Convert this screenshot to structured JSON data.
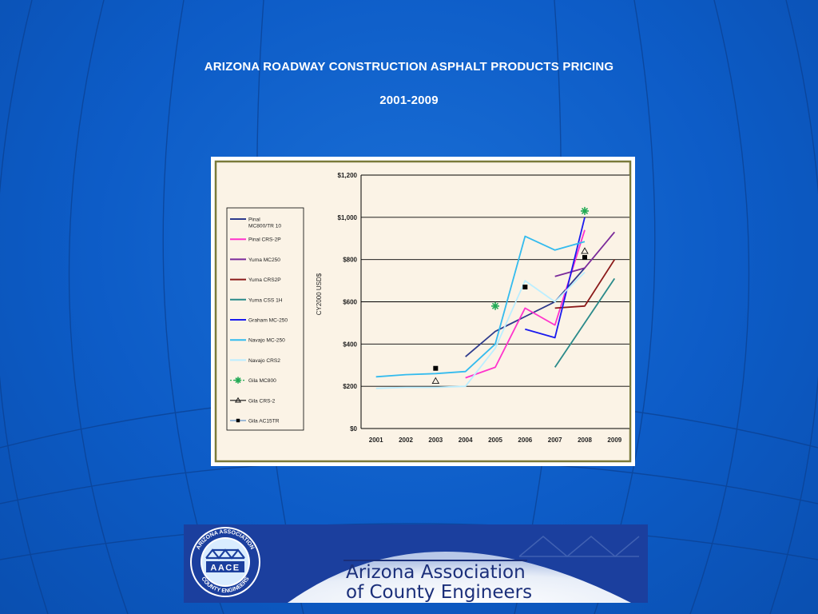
{
  "slide": {
    "title": "ARIZONA ROADWAY CONSTRUCTION ASPHALT PRODUCTS PRICING",
    "subtitle": "2001-2009"
  },
  "banner": {
    "org_line1": "Arizona Association",
    "org_line2": "of County Engineers",
    "logo_top_text": "ARIZONA ASSOCIATION",
    "logo_bottom_text": "COUNTY ENGINEERS",
    "logo_center_text": "AACE"
  },
  "chart_data": {
    "type": "line",
    "title": "",
    "xlabel": "",
    "ylabel": "CY2000 USD$",
    "x": [
      2001,
      2002,
      2003,
      2004,
      2005,
      2006,
      2007,
      2008,
      2009
    ],
    "x_tick_labels": [
      "2001",
      "2002",
      "2003",
      "2004",
      "2005",
      "2006",
      "2007",
      "2008",
      "2009"
    ],
    "ylim": [
      0,
      1200
    ],
    "y_ticks": [
      0,
      200,
      400,
      600,
      800,
      1000,
      1200
    ],
    "y_tick_labels": [
      "$0",
      "$200",
      "$400",
      "$600",
      "$800",
      "$1,000",
      "$1,200"
    ],
    "grid": true,
    "legend_position": "left",
    "colors": {
      "plot_bg": "#fbf3e6",
      "outer_bg": "#fbf3e6",
      "frame": "#7a7a3a",
      "grid": "#000000"
    },
    "series": [
      {
        "name": "Pinal MC800/TR 10",
        "color": "#2d3a8c",
        "marker": "none",
        "points": [
          [
            2004,
            340
          ],
          [
            2005,
            460
          ],
          [
            2006,
            530
          ],
          [
            2007,
            600
          ],
          [
            2008,
            760
          ]
        ]
      },
      {
        "name": "Pinal CRS-2P",
        "color": "#ff33cc",
        "marker": "none",
        "points": [
          [
            2004,
            240
          ],
          [
            2005,
            290
          ],
          [
            2006,
            570
          ],
          [
            2007,
            490
          ],
          [
            2008,
            940
          ]
        ]
      },
      {
        "name": "Yuma MC250",
        "color": "#7a2a9a",
        "marker": "none",
        "points": [
          [
            2007,
            720
          ],
          [
            2008,
            760
          ],
          [
            2009,
            930
          ]
        ]
      },
      {
        "name": "Yuma CRS2P",
        "color": "#8b1a1a",
        "marker": "none",
        "points": [
          [
            2007,
            570
          ],
          [
            2008,
            580
          ],
          [
            2009,
            800
          ]
        ]
      },
      {
        "name": "Yuma CSS 1H",
        "color": "#2a8a8a",
        "marker": "none",
        "points": [
          [
            2007,
            290
          ],
          [
            2008,
            500
          ],
          [
            2009,
            710
          ]
        ]
      },
      {
        "name": "Graham MC-250",
        "color": "#1a1aee",
        "marker": "none",
        "points": [
          [
            2006,
            470
          ],
          [
            2007,
            430
          ],
          [
            2008,
            1000
          ]
        ]
      },
      {
        "name": "Navajo MC-250",
        "color": "#33bbee",
        "marker": "none",
        "points": [
          [
            2001,
            245
          ],
          [
            2002,
            255
          ],
          [
            2003,
            260
          ],
          [
            2004,
            270
          ],
          [
            2005,
            400
          ],
          [
            2006,
            910
          ],
          [
            2007,
            845
          ],
          [
            2008,
            885
          ]
        ]
      },
      {
        "name": "Navajo CRS2",
        "color": "#bbeeff",
        "marker": "none",
        "points": [
          [
            2001,
            190
          ],
          [
            2002,
            195
          ],
          [
            2003,
            195
          ],
          [
            2004,
            200
          ],
          [
            2005,
            380
          ],
          [
            2006,
            700
          ],
          [
            2007,
            600
          ],
          [
            2008,
            740
          ]
        ]
      },
      {
        "name": "Gila MC800",
        "color": "#22aa55",
        "marker": "star",
        "points": [
          [
            2005,
            580
          ],
          [
            2008,
            1030
          ]
        ]
      },
      {
        "name": "Gila CRS-2",
        "color": "#111111",
        "marker": "triangle",
        "points": [
          [
            2003,
            225
          ],
          [
            2008,
            840
          ]
        ]
      },
      {
        "name": "Gila AC15TR",
        "color": "#000000",
        "marker": "square",
        "points": [
          [
            2003,
            285
          ],
          [
            2006,
            670
          ],
          [
            2008,
            810
          ]
        ]
      }
    ]
  }
}
